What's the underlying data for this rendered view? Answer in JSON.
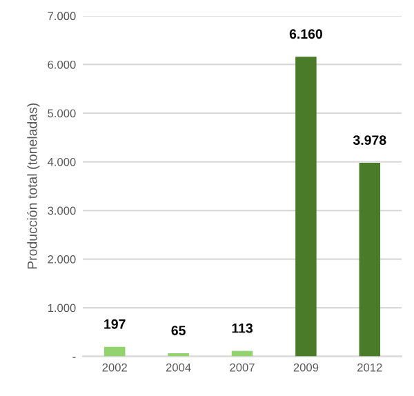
{
  "chart_data": {
    "type": "bar",
    "ylabel": "Producción total (toneladas)",
    "categories": [
      "2002",
      "2004",
      "2007",
      "2009",
      "2012"
    ],
    "values": [
      197,
      65,
      113,
      6160,
      3978
    ],
    "colors": [
      "#92d36e",
      "#92d36e",
      "#92d36e",
      "#4a7b29",
      "#4a7b29"
    ],
    "value_labels": [
      "197",
      "65",
      "113",
      "6.160",
      "3.978"
    ],
    "ylim": [
      0,
      7000
    ],
    "yticks": [
      {
        "value": 0,
        "label": "-"
      },
      {
        "value": 1000,
        "label": "1.000"
      },
      {
        "value": 2000,
        "label": "2.000"
      },
      {
        "value": 3000,
        "label": "3.000"
      },
      {
        "value": 4000,
        "label": "4.000"
      },
      {
        "value": 5000,
        "label": "5.000"
      },
      {
        "value": 6000,
        "label": "6.000"
      },
      {
        "value": 7000,
        "label": "7.000"
      }
    ],
    "grid": "y"
  }
}
